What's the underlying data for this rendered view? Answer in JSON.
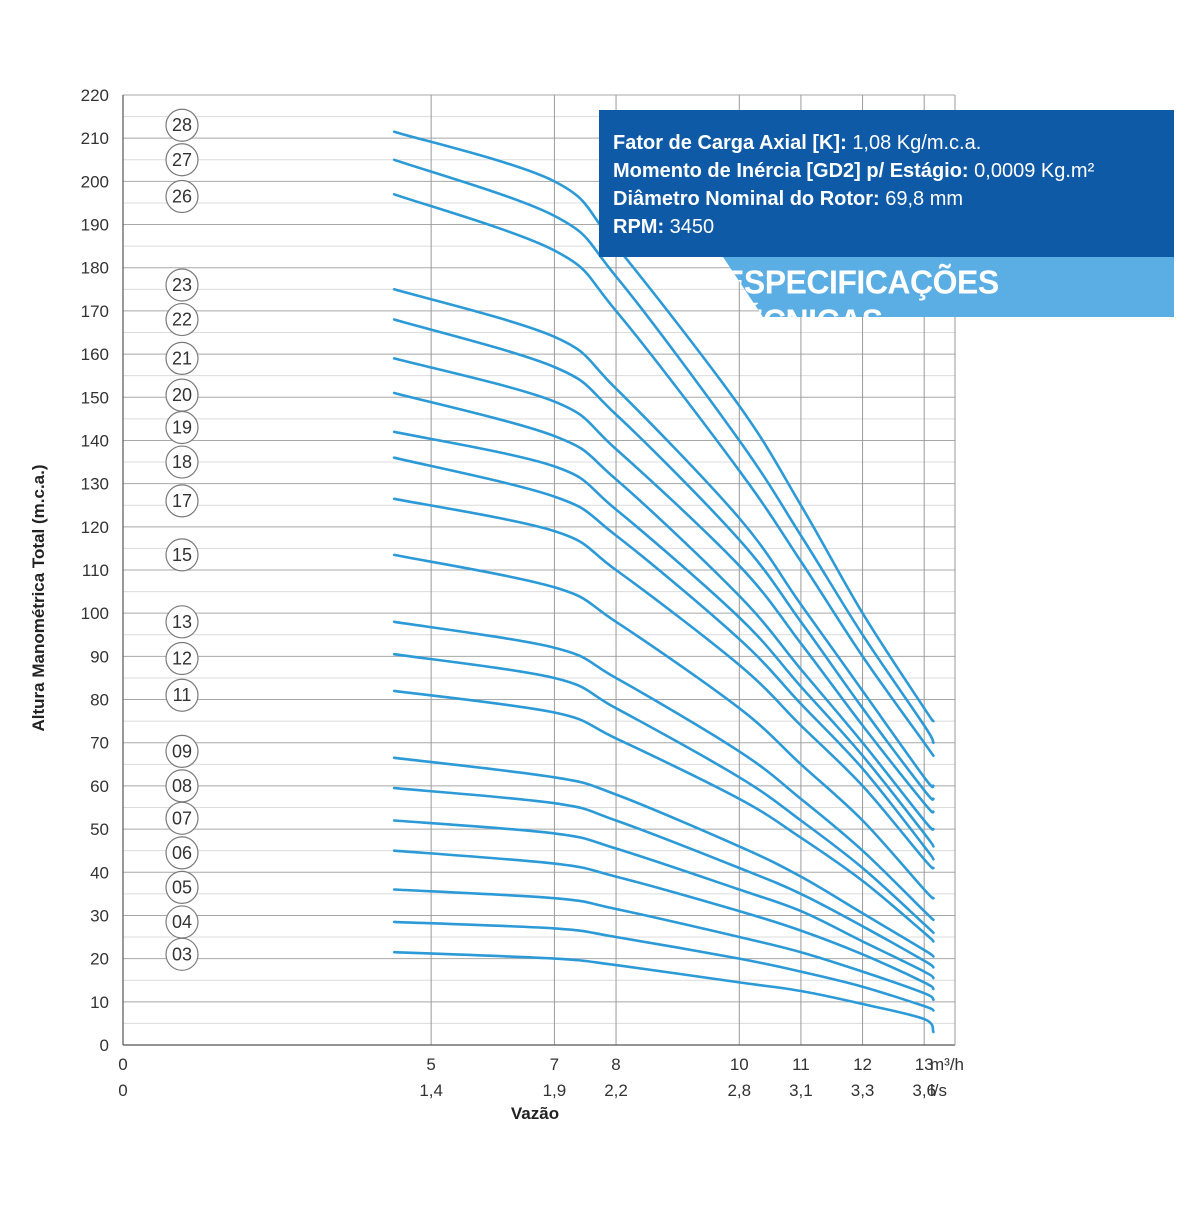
{
  "chart_data": {
    "type": "line",
    "title": "",
    "ylabel": "Altura Manométrica Total (m.c.a.)",
    "xlabel": "Vazão",
    "ylim": [
      0,
      220
    ],
    "yticks": [
      0,
      10,
      20,
      30,
      40,
      50,
      60,
      70,
      80,
      90,
      100,
      110,
      120,
      130,
      140,
      150,
      160,
      170,
      180,
      190,
      200,
      210,
      220
    ],
    "xlim": [
      0,
      13.5
    ],
    "x_unit_primary": "m³/h",
    "x_unit_secondary": "l/s",
    "xticks": [
      {
        "x": 0,
        "primary": "0",
        "secondary": "0"
      },
      {
        "x": 5,
        "primary": "5",
        "secondary": "1,4"
      },
      {
        "x": 7,
        "primary": "7",
        "secondary": "1,9"
      },
      {
        "x": 8,
        "primary": "8",
        "secondary": "2,2"
      },
      {
        "x": 10,
        "primary": "10",
        "secondary": "2,8"
      },
      {
        "x": 11,
        "primary": "11",
        "secondary": "3,1"
      },
      {
        "x": 12,
        "primary": "12",
        "secondary": "3,3"
      },
      {
        "x": 13,
        "primary": "13",
        "secondary": "3,6"
      }
    ],
    "grid": true,
    "line_color": "#2c9ad6",
    "series": [
      {
        "name": "28",
        "x": [
          4.4,
          7.0,
          8.0,
          10.0,
          11.0,
          12.0,
          13.0,
          13.15
        ],
        "y": [
          211.5,
          200,
          185,
          148,
          125,
          100,
          78,
          75
        ]
      },
      {
        "name": "27",
        "x": [
          4.4,
          7.0,
          8.0,
          10.0,
          11.0,
          12.0,
          13.0,
          13.15
        ],
        "y": [
          205,
          192,
          178,
          140,
          118,
          95,
          74,
          70
        ]
      },
      {
        "name": "26",
        "x": [
          4.4,
          7.0,
          8.0,
          10.0,
          11.0,
          12.0,
          13.0,
          13.15
        ],
        "y": [
          197,
          184,
          170,
          133,
          112,
          90,
          70,
          67
        ]
      },
      {
        "name": "23",
        "x": [
          4.4,
          7.0,
          8.0,
          10.0,
          11.0,
          12.0,
          13.0,
          13.15
        ],
        "y": [
          175,
          164,
          152,
          122,
          102,
          82,
          62,
          60
        ]
      },
      {
        "name": "22",
        "x": [
          4.4,
          7.0,
          8.0,
          10.0,
          11.0,
          12.0,
          13.0,
          13.15
        ],
        "y": [
          168,
          157,
          146,
          117,
          98,
          78,
          59,
          57
        ]
      },
      {
        "name": "21",
        "x": [
          4.4,
          7.0,
          8.0,
          10.0,
          11.0,
          12.0,
          13.0,
          13.15
        ],
        "y": [
          159,
          149,
          138,
          111,
          93,
          74,
          56,
          54
        ]
      },
      {
        "name": "20",
        "x": [
          4.4,
          7.0,
          8.0,
          10.0,
          11.0,
          12.0,
          13.0,
          13.15
        ],
        "y": [
          151,
          141,
          131,
          104,
          87,
          70,
          52,
          50
        ]
      },
      {
        "name": "19",
        "x": [
          4.4,
          7.0,
          8.0,
          10.0,
          11.0,
          12.0,
          13.0,
          13.15
        ],
        "y": [
          142,
          134,
          124,
          99,
          83,
          67,
          49,
          46
        ]
      },
      {
        "name": "18",
        "x": [
          4.4,
          7.0,
          8.0,
          10.0,
          11.0,
          12.0,
          13.0,
          13.15
        ],
        "y": [
          136,
          127,
          118,
          94,
          79,
          64,
          46,
          43
        ]
      },
      {
        "name": "17",
        "x": [
          4.4,
          7.0,
          8.0,
          10.0,
          11.0,
          12.0,
          13.0,
          13.15
        ],
        "y": [
          126.5,
          119,
          110,
          88,
          74,
          60,
          43,
          41
        ]
      },
      {
        "name": "15",
        "x": [
          4.4,
          7.0,
          8.0,
          10.0,
          11.0,
          12.0,
          13.0,
          13.15
        ],
        "y": [
          113.5,
          106,
          98,
          78,
          65,
          52,
          36,
          34
        ]
      },
      {
        "name": "13",
        "x": [
          4.4,
          7.0,
          8.0,
          10.0,
          11.0,
          12.0,
          13.0,
          13.15
        ],
        "y": [
          98,
          92,
          85,
          68,
          57,
          45,
          31,
          29
        ]
      },
      {
        "name": "12",
        "x": [
          4.4,
          7.0,
          8.0,
          10.0,
          11.0,
          12.0,
          13.0,
          13.15
        ],
        "y": [
          90.5,
          85,
          78,
          62,
          52,
          41,
          28,
          26
        ]
      },
      {
        "name": "11",
        "x": [
          4.4,
          7.0,
          8.0,
          10.0,
          11.0,
          12.0,
          13.0,
          13.15
        ],
        "y": [
          82,
          77,
          71,
          57,
          48,
          38,
          26,
          24
        ]
      },
      {
        "name": "09",
        "x": [
          4.4,
          7.0,
          8.0,
          10.0,
          11.0,
          12.0,
          13.0,
          13.15
        ],
        "y": [
          66.5,
          62,
          58,
          46,
          39,
          30.5,
          22,
          20.5
        ]
      },
      {
        "name": "08",
        "x": [
          4.4,
          7.0,
          8.0,
          10.0,
          11.0,
          12.0,
          13.0,
          13.15
        ],
        "y": [
          59.5,
          56,
          52,
          41,
          35,
          27.5,
          19.5,
          18
        ]
      },
      {
        "name": "07",
        "x": [
          4.4,
          7.0,
          8.0,
          10.0,
          11.0,
          12.0,
          13.0,
          13.15
        ],
        "y": [
          52,
          49,
          45.5,
          36,
          31,
          24,
          17,
          15.5
        ]
      },
      {
        "name": "06",
        "x": [
          4.4,
          7.0,
          8.0,
          10.0,
          11.0,
          12.0,
          13.0,
          13.15
        ],
        "y": [
          45,
          42,
          39,
          31,
          26.5,
          21,
          14.5,
          13
        ]
      },
      {
        "name": "05",
        "x": [
          4.4,
          7.0,
          8.0,
          10.0,
          11.0,
          12.0,
          13.0,
          13.15
        ],
        "y": [
          36,
          34,
          31.5,
          25,
          21.5,
          17,
          12,
          10.5
        ]
      },
      {
        "name": "04",
        "x": [
          4.4,
          7.0,
          8.0,
          10.0,
          11.0,
          12.0,
          13.0,
          13.15
        ],
        "y": [
          28.5,
          27,
          25,
          20,
          17,
          13.5,
          9,
          8
        ]
      },
      {
        "name": "03",
        "x": [
          4.4,
          7.0,
          8.0,
          10.0,
          11.0,
          12.0,
          13.0,
          13.15
        ],
        "y": [
          21.5,
          20,
          18.5,
          14.5,
          12.5,
          9.5,
          6,
          3
        ]
      }
    ],
    "stage_labels": [
      {
        "text": "28",
        "y": 213
      },
      {
        "text": "27",
        "y": 205
      },
      {
        "text": "26",
        "y": 196.5
      },
      {
        "text": "23",
        "y": 176
      },
      {
        "text": "22",
        "y": 168
      },
      {
        "text": "21",
        "y": 159
      },
      {
        "text": "20",
        "y": 150.5
      },
      {
        "text": "19",
        "y": 143
      },
      {
        "text": "18",
        "y": 135
      },
      {
        "text": "17",
        "y": 126
      },
      {
        "text": "15",
        "y": 113.5
      },
      {
        "text": "13",
        "y": 98
      },
      {
        "text": "12",
        "y": 89.5
      },
      {
        "text": "11",
        "y": 81
      },
      {
        "text": "09",
        "y": 68
      },
      {
        "text": "08",
        "y": 60
      },
      {
        "text": "07",
        "y": 52.5
      },
      {
        "text": "06",
        "y": 44.5
      },
      {
        "text": "05",
        "y": 36.5
      },
      {
        "text": "04",
        "y": 28.5
      },
      {
        "text": "03",
        "y": 21
      }
    ]
  },
  "specs": {
    "heading": "ESPECIFICAÇÕES TÉCNICAS",
    "items": [
      {
        "label": "Fator de Carga Axial [K]:",
        "value": "1,08 Kg/m.c.a."
      },
      {
        "label": "Momento de Inércia [GD2] p/ Estágio:",
        "value": "0,0009 Kg.m²"
      },
      {
        "label": "Diâmetro Nominal do Rotor:",
        "value": "69,8 mm"
      },
      {
        "label": "RPM:",
        "value": "3450"
      }
    ]
  }
}
